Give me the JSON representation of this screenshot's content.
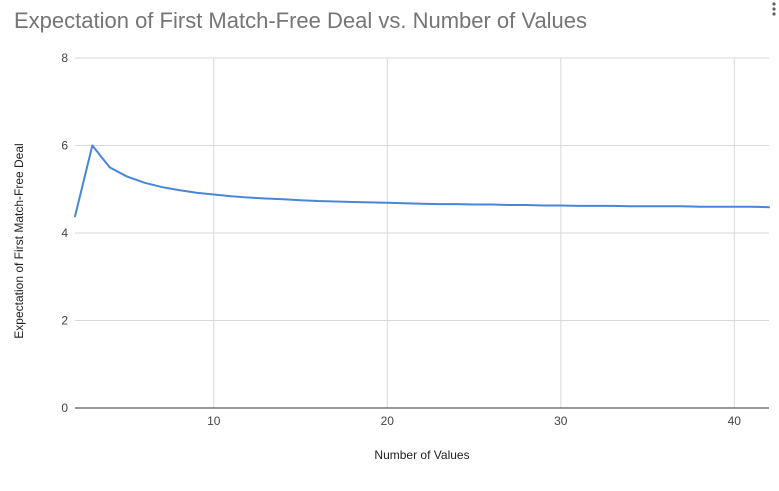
{
  "chart_data": {
    "type": "line",
    "title": "Expectation of First Match-Free Deal vs. Number of Values",
    "xlabel": "Number of Values",
    "ylabel": "Expectation of First Match-Free Deal",
    "xlim": [
      2,
      42
    ],
    "ylim": [
      0,
      8
    ],
    "x_ticks": [
      10,
      20,
      30,
      40
    ],
    "y_ticks": [
      0,
      2,
      4,
      6,
      8
    ],
    "x_tick_labels": [
      "10",
      "20",
      "30",
      "40"
    ],
    "y_tick_labels": [
      "0",
      "2",
      "4",
      "6",
      "8"
    ],
    "grid": true,
    "legend": "none",
    "series": [
      {
        "color": "#4a86d8",
        "x": [
          2,
          3,
          4,
          5,
          6,
          7,
          8,
          9,
          10,
          11,
          12,
          13,
          14,
          15,
          16,
          17,
          18,
          19,
          20,
          21,
          22,
          23,
          24,
          25,
          26,
          27,
          28,
          29,
          30,
          31,
          32,
          33,
          34,
          35,
          36,
          37,
          38,
          39,
          40,
          41,
          42
        ],
        "values": [
          4.38,
          6.0,
          5.5,
          5.29,
          5.15,
          5.05,
          4.98,
          4.92,
          4.88,
          4.84,
          4.81,
          4.79,
          4.77,
          4.75,
          4.73,
          4.72,
          4.71,
          4.7,
          4.69,
          4.68,
          4.67,
          4.66,
          4.66,
          4.65,
          4.65,
          4.64,
          4.64,
          4.63,
          4.63,
          4.62,
          4.62,
          4.62,
          4.61,
          4.61,
          4.61,
          4.61,
          4.6,
          4.6,
          4.6,
          4.6,
          4.59
        ]
      }
    ]
  }
}
